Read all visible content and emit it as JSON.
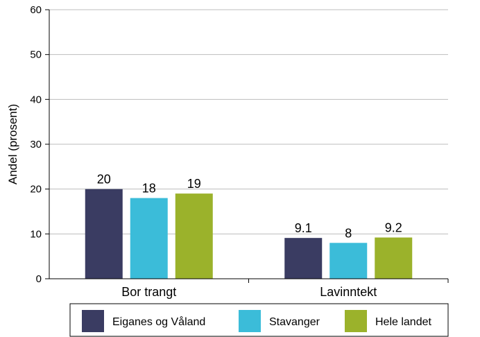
{
  "chart_data": {
    "type": "bar",
    "title": "",
    "xlabel": "",
    "ylabel": "Andel (prosent)",
    "ylim": [
      0,
      60
    ],
    "yticks": [
      0,
      10,
      20,
      30,
      40,
      50,
      60
    ],
    "grid": true,
    "legend_position": "bottom",
    "categories": [
      "Bor trangt",
      "Lavinntekt"
    ],
    "series": [
      {
        "name": "Eiganes og Våland",
        "color": "#3a3c62",
        "values": [
          20,
          9.1
        ],
        "labels": [
          "20",
          "9.1"
        ]
      },
      {
        "name": "Stavanger",
        "color": "#3bbcd9",
        "values": [
          18,
          8
        ],
        "labels": [
          "18",
          "8"
        ]
      },
      {
        "name": "Hele landet",
        "color": "#9bb22b",
        "values": [
          19,
          9.2
        ],
        "labels": [
          "19",
          "9.2"
        ]
      }
    ]
  }
}
